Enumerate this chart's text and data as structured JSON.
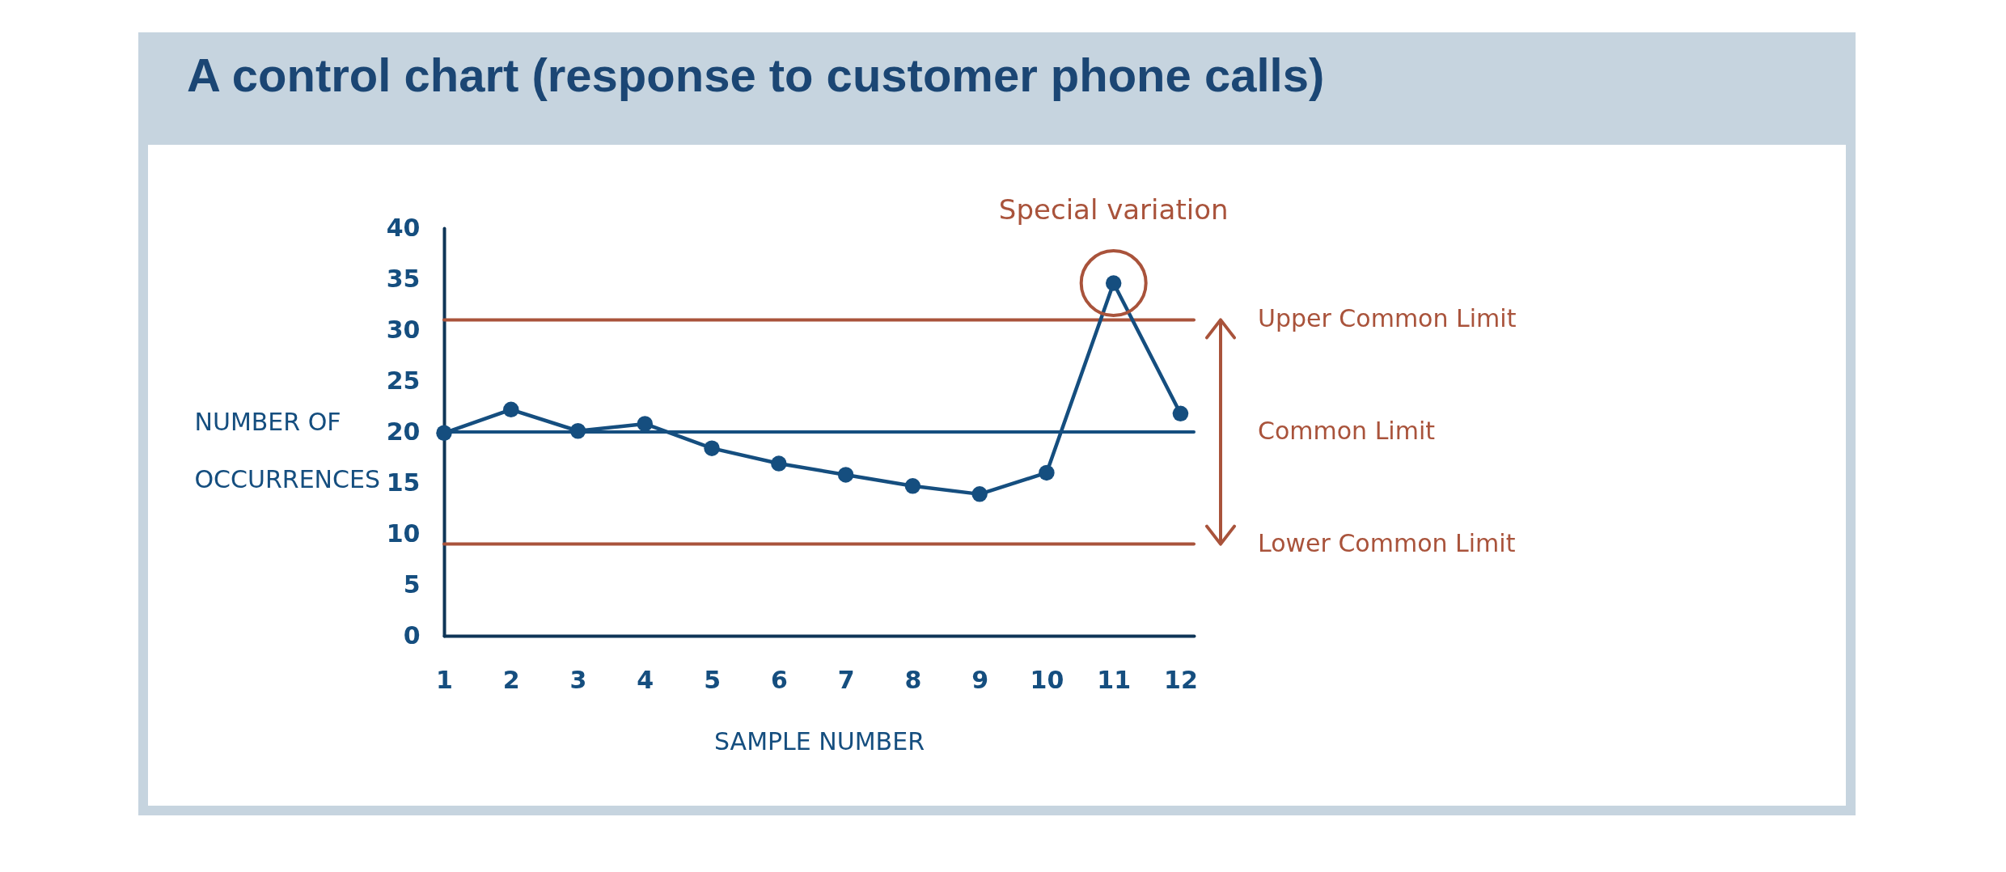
{
  "chart_data": {
    "type": "line",
    "title": "A control chart (response to customer phone calls)",
    "xlabel": "SAMPLE NUMBER",
    "ylabel": "NUMBER OF OCCURRENCES",
    "x": [
      1,
      2,
      3,
      4,
      5,
      6,
      7,
      8,
      9,
      10,
      11,
      12
    ],
    "series": [
      {
        "color": "#154e7f",
        "values": [
          19.9,
          22.2,
          20.1,
          20.8,
          18.4,
          16.9,
          15.8,
          14.7,
          13.9,
          16.0,
          34.6,
          21.8
        ]
      }
    ],
    "xlim": [
      1,
      12.2
    ],
    "xticks": [
      1,
      2,
      3,
      4,
      5,
      6,
      7,
      8,
      9,
      10,
      11,
      12
    ],
    "ylim": [
      0,
      40
    ],
    "yticks": [
      0,
      5,
      10,
      15,
      20,
      25,
      30,
      35,
      40
    ],
    "ref_lines": [
      {
        "axis": "y",
        "value": 31,
        "label": "Upper Common Limit",
        "color": "#a9533b"
      },
      {
        "axis": "y",
        "value": 20,
        "label": "Common Limit",
        "color": "#154e7f"
      },
      {
        "axis": "y",
        "value": 9,
        "label": "Lower Common Limit",
        "color": "#a9533b"
      }
    ],
    "annotations": [
      {
        "text": "Special variation",
        "x": 11,
        "y": 34.6
      }
    ],
    "marker": "circle",
    "line_style": "solid"
  }
}
